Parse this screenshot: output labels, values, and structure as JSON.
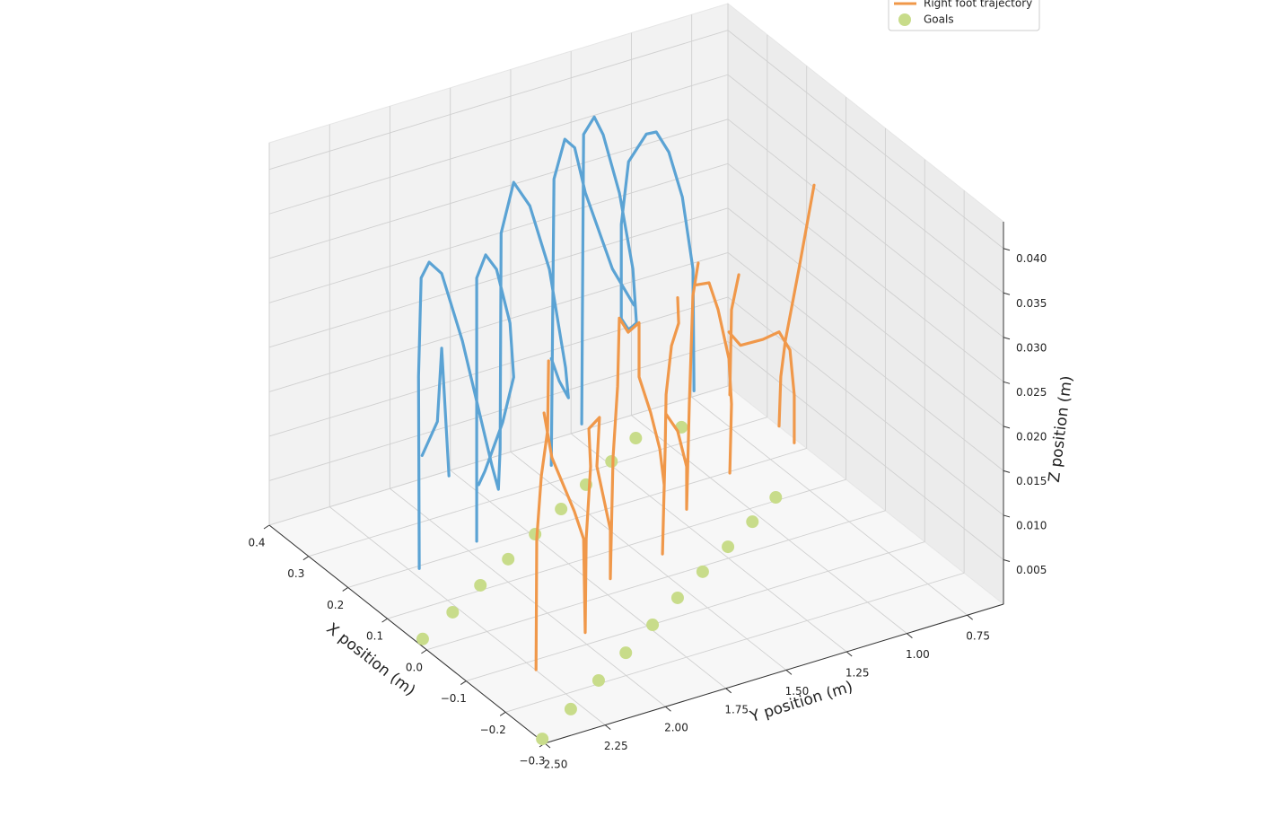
{
  "chart_data": {
    "type": "line3d",
    "xlabel": "X position (m)",
    "ylabel": "Y position (m)",
    "zlabel": "Z position (m)",
    "xlim": [
      -0.3,
      0.4
    ],
    "ylim": [
      0.6,
      2.5
    ],
    "zlim": [
      0,
      0.043
    ],
    "xticks": [
      {
        "value": -0.3,
        "label": "−0.3"
      },
      {
        "value": -0.2,
        "label": "−0.2"
      },
      {
        "value": -0.1,
        "label": "−0.1"
      },
      {
        "value": 0,
        "label": "0.0"
      },
      0.1,
      0.2,
      0.3,
      0.4
    ],
    "yticks": [
      0.75,
      {
        "value": 1,
        "label": "1.00"
      },
      1.25,
      {
        "value": 1.5,
        "label": "1.50"
      },
      1.75,
      {
        "value": 2,
        "label": "2.00"
      },
      2.25,
      {
        "value": 2.5,
        "label": "2.50"
      }
    ],
    "zticks": [
      0.005,
      {
        "value": 0.01,
        "label": "0.010"
      },
      0.015,
      {
        "value": 0.02,
        "label": "0.020"
      },
      0.025,
      {
        "value": 0.03,
        "label": "0.030"
      },
      0.035,
      {
        "value": 0.04,
        "label": "0.040"
      }
    ],
    "grid": true,
    "series": [
      {
        "type": "scatter",
        "name": "Goals",
        "color": "#c8dc8a",
        "x": [
          0.028,
          0.069,
          0.112,
          0.153,
          0.192,
          0.232,
          0.271,
          0.307,
          0.344,
          0.337,
          -0.288,
          -0.239,
          -0.192,
          -0.147,
          -0.101,
          -0.056,
          -0.013,
          0.027,
          0.068,
          0.108
        ],
        "y": [
          2.471,
          2.28,
          2.095,
          1.913,
          1.738,
          1.565,
          1.398,
          1.234,
          1.073,
          0.895,
          2.491,
          2.293,
          2.101,
          1.915,
          1.729,
          1.552,
          1.378,
          1.208,
          1.04,
          0.878
        ],
        "z": [
          0,
          0,
          0,
          0,
          0,
          0,
          0,
          0,
          0,
          0,
          0,
          0,
          0,
          0,
          0,
          0,
          0,
          0,
          0,
          0
        ]
      },
      {
        "type": "line",
        "color": "#5ba3d4",
        "x": [
          0.13,
          0.13,
          0.13,
          0.13,
          0.13,
          0.13,
          0.13,
          null,
          0.13,
          0.13,
          0.13,
          0.13,
          null,
          0.13,
          0.13,
          0.13,
          0.13,
          0.13,
          0.13,
          0.13,
          0.13,
          0.13,
          null,
          0.13,
          0.13,
          0.13,
          0.13,
          0.13,
          0.13,
          0.13,
          0.13,
          0.13,
          0.13,
          0.13,
          null,
          0.13,
          0.13,
          0.13,
          0.13,
          0.13,
          0.13,
          0.13,
          null,
          0.13,
          0.13,
          0.13,
          0.13,
          0.13,
          0.13,
          0.13,
          0.13,
          0.13,
          0.13,
          0.13,
          0.13,
          0.13,
          0.13,
          0.13,
          0.13,
          0.13
        ],
        "y": [
          2.319,
          2.322,
          2.311,
          2.278,
          2.226,
          2.14,
          2.017,
          null,
          2.196,
          2.226,
          2.244,
          2.307,
          null,
          2.081,
          2.081,
          2.044,
          1.999,
          1.943,
          1.928,
          1.973,
          2.047,
          2.073,
          null,
          2.017,
          1.991,
          1.984,
          1.98,
          1.928,
          1.861,
          1.78,
          1.713,
          1.701,
          1.739,
          1.772,
          null,
          1.772,
          1.761,
          1.716,
          1.675,
          1.631,
          1.519,
          1.43,
          null,
          1.646,
          1.638,
          1.594,
          1.557,
          1.49,
          1.434,
          1.419,
          1.452,
          1.482,
          1.482,
          1.452,
          1.378,
          1.337,
          1.285,
          1.229,
          1.185,
          1.181
        ],
        "z": [
          0.0031,
          0.0247,
          0.0357,
          0.0372,
          0.0355,
          0.0272,
          0.0121,
          null,
          0.0125,
          0.0271,
          0.019,
          0.0157,
          null,
          0.0042,
          0.0338,
          0.0361,
          0.0341,
          0.0276,
          0.0214,
          0.0167,
          0.0118,
          0.0105,
          null,
          0.0121,
          0.0093,
          0.0138,
          0.038,
          0.0433,
          0.0401,
          0.0323,
          0.0207,
          0.0172,
          0.0194,
          0.0222,
          null,
          0.0102,
          0.0423,
          0.0464,
          0.0451,
          0.0397,
          0.0302,
          0.0254,
          null,
          0.0138,
          0.0463,
          0.0479,
          0.0456,
          0.0385,
          0.0295,
          0.0233,
          0.0228,
          0.0243,
          0.0349,
          0.0417,
          0.0442,
          0.0441,
          0.0414,
          0.0359,
          0.0274,
          0.0137
        ]
      },
      {
        "type": "line",
        "name": "Right foot trajectory",
        "color": "#f0984a",
        "x": [
          -0.185,
          -0.185,
          -0.185,
          -0.185,
          -0.185,
          null,
          -0.185,
          -0.185,
          -0.185,
          -0.185,
          -0.185,
          -0.185,
          -0.185,
          -0.185,
          -0.185,
          -0.185,
          -0.185,
          -0.185,
          -0.185,
          -0.185,
          -0.185,
          -0.185,
          -0.185,
          -0.185,
          -0.185,
          -0.185,
          -0.185,
          -0.185,
          -0.185,
          -0.185,
          -0.185,
          -0.185,
          -0.185,
          null,
          -0.185,
          -0.185,
          -0.185,
          -0.185,
          -0.185,
          -0.185,
          -0.185,
          null,
          -0.185,
          -0.185,
          -0.185,
          -0.185,
          -0.185,
          -0.185,
          null,
          -0.185,
          -0.185,
          -0.185,
          null,
          -0.185,
          -0.185,
          -0.185,
          -0.185,
          -0.185,
          -0.185,
          -0.185,
          null,
          -0.185,
          -0.185,
          -0.185,
          -0.185,
          -0.185
        ],
        "y": [
          2.349,
          2.346,
          2.327,
          2.301,
          2.297,
          null,
          2.316,
          2.283,
          2.19,
          2.152,
          2.145,
          2.141,
          2.123,
          2.13,
          2.086,
          2.097,
          2.041,
          2.041,
          2.03,
          2.011,
          2.004,
          1.967,
          1.922,
          1.922,
          1.874,
          1.836,
          1.818,
          1.825,
          1.814,
          1.81,
          1.788,
          1.758,
          1.762,
          null,
          1.81,
          1.762,
          1.725,
          1.725,
          1.714,
          1.699,
          1.677,
          null,
          1.684,
          1.632,
          1.595,
          1.55,
          1.539,
          1.546,
          null,
          1.546,
          1.539,
          1.509,
          null,
          1.55,
          1.502,
          1.409,
          1.342,
          1.297,
          1.279,
          1.279,
          null,
          1.342,
          1.335,
          1.316,
          1.26,
          1.197
        ],
        "z": [
          0.003,
          0.0177,
          0.0246,
          0.0295,
          0.0373,
          null,
          0.0316,
          0.0263,
          0.0195,
          0.0161,
          0.0055,
          0.016,
          0.024,
          0.0283,
          0.0292,
          0.0238,
          0.0162,
          0.0107,
          0.0242,
          0.0321,
          0.0397,
          0.0378,
          0.0385,
          0.0324,
          0.028,
          0.0236,
          0.0194,
          0.0117,
          0.0235,
          0.0295,
          0.0348,
          0.0371,
          0.04,
          null,
          0.0273,
          0.025,
          0.0207,
          0.0159,
          0.0277,
          0.0397,
          0.0432,
          null,
          0.0408,
          0.0406,
          0.0373,
          0.0314,
          0.0262,
          0.0185,
          null,
          0.0273,
          0.0368,
          0.0405,
          null,
          0.0344,
          0.0325,
          0.0324,
          0.0327,
          0.0303,
          0.0251,
          0.0197,
          null,
          0.0221,
          0.0276,
          0.0315,
          0.0391,
          0.048
        ]
      }
    ]
  }
}
